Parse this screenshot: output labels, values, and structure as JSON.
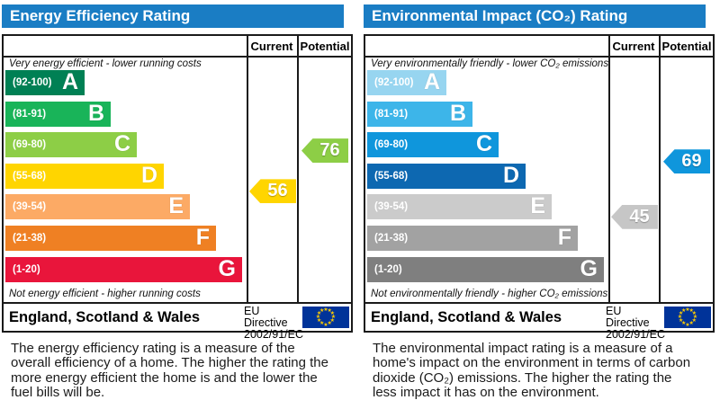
{
  "charts": [
    {
      "id": "energy-efficiency",
      "title": "Energy Efficiency Rating",
      "header": {
        "current": "Current",
        "potential": "Potential"
      },
      "top_label": "Very energy efficient - lower running costs",
      "bottom_label": "Not energy efficient - higher running costs",
      "bands": [
        {
          "letter": "A",
          "range": "(92-100)",
          "min": 92,
          "max": 100,
          "color": "#008054"
        },
        {
          "letter": "B",
          "range": "(81-91)",
          "min": 81,
          "max": 91,
          "color": "#19b459"
        },
        {
          "letter": "C",
          "range": "(69-80)",
          "min": 69,
          "max": 80,
          "color": "#8dce46"
        },
        {
          "letter": "D",
          "range": "(55-68)",
          "min": 55,
          "max": 68,
          "color": "#ffd500"
        },
        {
          "letter": "E",
          "range": "(39-54)",
          "min": 39,
          "max": 54,
          "color": "#fcaa65"
        },
        {
          "letter": "F",
          "range": "(21-38)",
          "min": 21,
          "max": 38,
          "color": "#ef8023"
        },
        {
          "letter": "G",
          "range": "(1-20)",
          "min": 1,
          "max": 20,
          "color": "#e9153b"
        }
      ],
      "current": {
        "value": "56",
        "color": "#ffd500"
      },
      "potential": {
        "value": "76",
        "color": "#8dce46"
      },
      "footer": {
        "region": "England, Scotland & Wales",
        "directive_line1": "EU Directive",
        "directive_line2": "2002/91/EC"
      },
      "description": "The energy efficiency rating is a measure of the overall efficiency of a home. The higher the rating the more energy efficient the home is and the lower the fuel bills will be."
    },
    {
      "id": "environmental-impact",
      "title": "Environmental Impact (CO₂) Rating",
      "header": {
        "current": "Current",
        "potential": "Potential"
      },
      "top_label": "Very environmentally friendly - lower CO₂ emissions",
      "bottom_label": "Not environmentally friendly - higher CO₂ emissions",
      "bands": [
        {
          "letter": "A",
          "range": "(92-100)",
          "min": 92,
          "max": 100,
          "color": "#97d5f0"
        },
        {
          "letter": "B",
          "range": "(81-91)",
          "min": 81,
          "max": 91,
          "color": "#3db5e9"
        },
        {
          "letter": "C",
          "range": "(69-80)",
          "min": 69,
          "max": 80,
          "color": "#0f96dc"
        },
        {
          "letter": "D",
          "range": "(55-68)",
          "min": 55,
          "max": 68,
          "color": "#0d68b1"
        },
        {
          "letter": "E",
          "range": "(39-54)",
          "min": 39,
          "max": 54,
          "color": "#cbcbcb"
        },
        {
          "letter": "F",
          "range": "(21-38)",
          "min": 21,
          "max": 38,
          "color": "#a2a2a2"
        },
        {
          "letter": "G",
          "range": "(1-20)",
          "min": 1,
          "max": 20,
          "color": "#7f7f7f"
        }
      ],
      "current": {
        "value": "45",
        "color": "#c6c6c6"
      },
      "potential": {
        "value": "69",
        "color": "#0f96dc"
      },
      "footer": {
        "region": "England, Scotland & Wales",
        "directive_line1": "EU Directive",
        "directive_line2": "2002/91/EC"
      },
      "description": "The environmental impact rating is a measure of a home's impact on the environment in terms of carbon dioxide (CO₂) emissions. The higher the rating the less impact it has on the environment."
    }
  ],
  "chart_data": [
    {
      "type": "bar",
      "title": "Energy Efficiency Rating",
      "categories": [
        "A (92-100)",
        "B (81-91)",
        "C (69-80)",
        "D (55-68)",
        "E (39-54)",
        "F (21-38)",
        "G (1-20)"
      ],
      "columns": [
        "Current",
        "Potential"
      ],
      "current": 56,
      "current_band": "D",
      "potential": 76,
      "potential_band": "C",
      "scale_top": "Very energy efficient - lower running costs",
      "scale_bottom": "Not energy efficient - higher running costs",
      "ylim": [
        1,
        100
      ]
    },
    {
      "type": "bar",
      "title": "Environmental Impact (CO₂) Rating",
      "categories": [
        "A (92-100)",
        "B (81-91)",
        "C (69-80)",
        "D (55-68)",
        "E (39-54)",
        "F (21-38)",
        "G (1-20)"
      ],
      "columns": [
        "Current",
        "Potential"
      ],
      "current": 45,
      "current_band": "E",
      "potential": 69,
      "potential_band": "C",
      "scale_top": "Very environmentally friendly - lower CO₂ emissions",
      "scale_bottom": "Not environmentally friendly - higher CO₂ emissions",
      "ylim": [
        1,
        100
      ]
    }
  ]
}
